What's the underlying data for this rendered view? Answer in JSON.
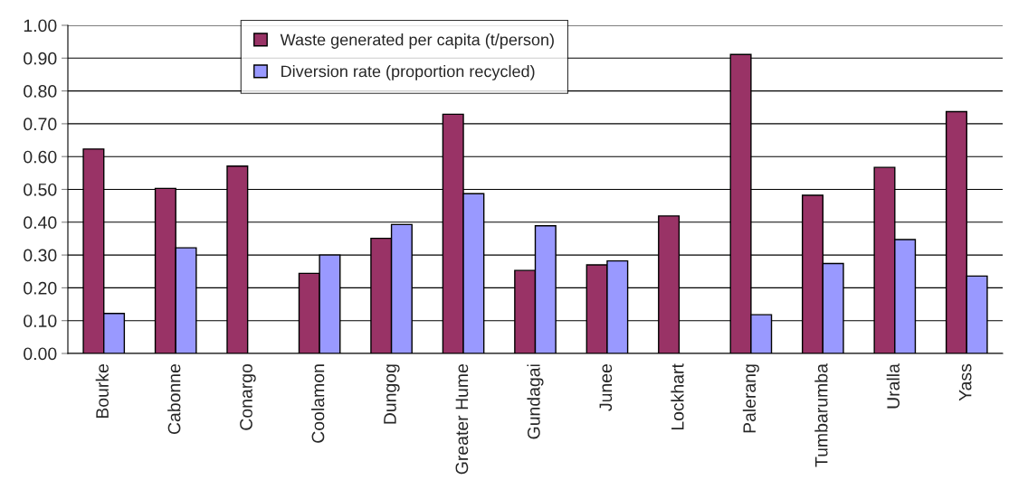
{
  "chart_data": {
    "type": "bar",
    "categories": [
      "Bourke",
      "Cabonne",
      "Conargo",
      "Coolamon",
      "Dungog",
      "Greater Hume",
      "Gundagai",
      "Junee",
      "Lockhart",
      "Palerang",
      "Tumbarumba",
      "Uralla",
      "Yass"
    ],
    "series": [
      {
        "name": "Waste generated per capita (t/person)",
        "color": "#993366",
        "values": [
          0.623,
          0.503,
          0.571,
          0.244,
          0.351,
          0.729,
          0.253,
          0.27,
          0.419,
          0.911,
          0.482,
          0.567,
          0.737
        ]
      },
      {
        "name": "Diversion rate (proportion recycled)",
        "color": "#9999ff",
        "values": [
          0.122,
          0.322,
          null,
          0.3,
          0.393,
          0.487,
          0.389,
          0.282,
          null,
          0.118,
          0.274,
          0.347,
          0.236
        ]
      }
    ],
    "ylim": [
      0,
      1.0
    ],
    "yticks": [
      {
        "value": 0,
        "label": "0.00"
      },
      {
        "value": 0.1,
        "label": "0.10"
      },
      {
        "value": 0.2,
        "label": "0.20"
      },
      {
        "value": 0.3,
        "label": "0.30"
      },
      {
        "value": 0.4,
        "label": "0.40"
      },
      {
        "value": 0.5,
        "label": "0.50"
      },
      {
        "value": 0.6,
        "label": "0.60"
      },
      {
        "value": 0.7,
        "label": "0.70"
      },
      {
        "value": 0.8,
        "label": "0.80"
      },
      {
        "value": 0.9,
        "label": "0.90"
      },
      {
        "value": 1.0,
        "label": "1.00"
      }
    ],
    "grid": "y",
    "legend": "top"
  }
}
